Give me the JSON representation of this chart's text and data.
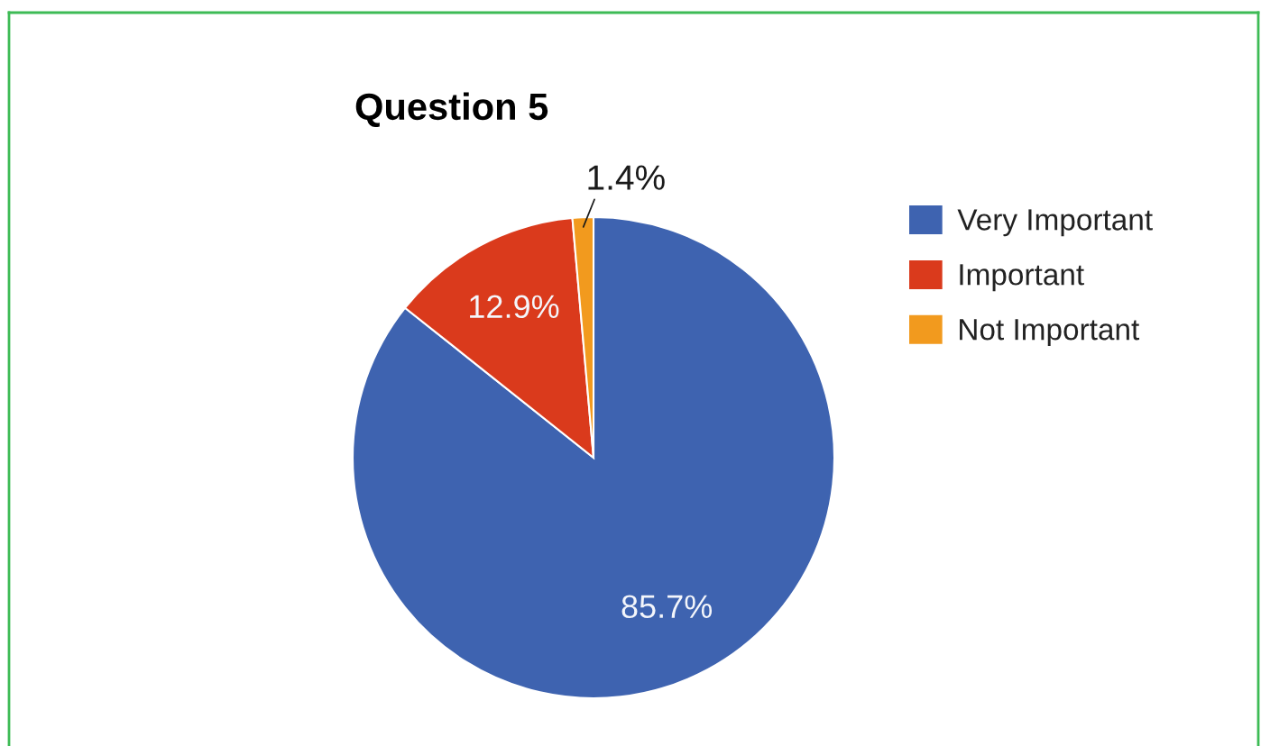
{
  "chart_data": {
    "type": "pie",
    "title": "Question 5",
    "categories": [
      "Very Important",
      "Important",
      "Not Important"
    ],
    "values": [
      85.7,
      12.9,
      1.4
    ],
    "colors": [
      "#3e63b0",
      "#da3a1c",
      "#f29a1e"
    ],
    "value_labels": [
      "85.7%",
      "12.9%",
      "1.4%"
    ],
    "legend": "right"
  }
}
